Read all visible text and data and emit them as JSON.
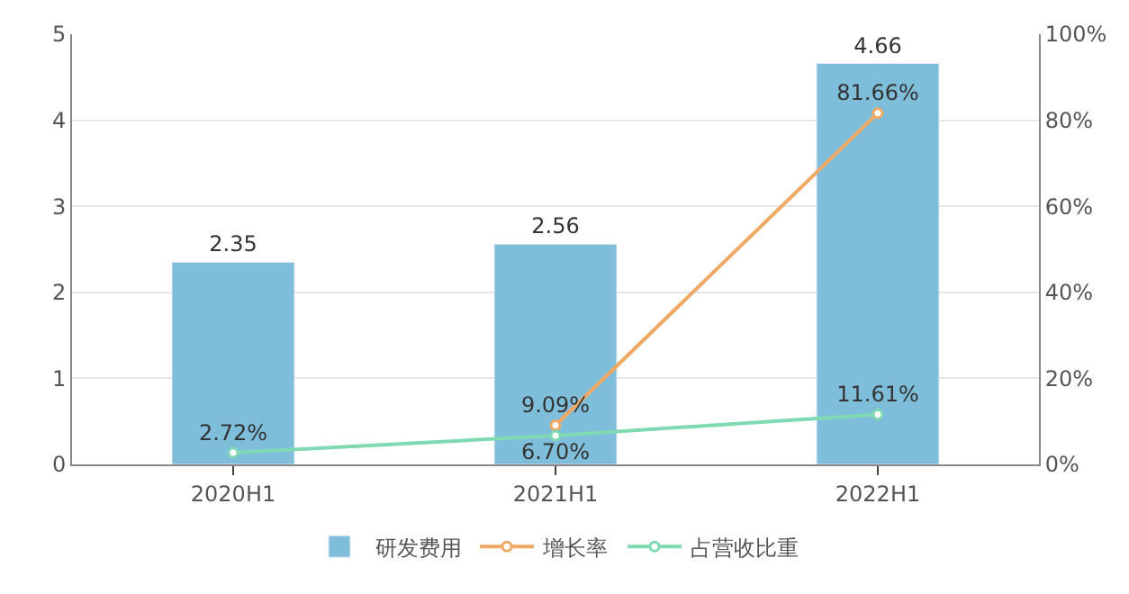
{
  "chart_data": {
    "type": "bar",
    "categories": [
      "2020H1",
      "2021H1",
      "2022H1"
    ],
    "series": [
      {
        "name": "研发费用",
        "color": "#7fbedb",
        "values": [
          2.35,
          2.56,
          4.66
        ],
        "value_labels": [
          "2.35",
          "2.56",
          "4.66"
        ]
      },
      {
        "name": "增长率",
        "type": "line",
        "axis": "y2",
        "color": "#f0a964",
        "values": [
          null,
          9.09,
          81.66
        ],
        "value_labels": [
          null,
          "9.09%",
          "81.66%"
        ]
      },
      {
        "name": "占营收比重",
        "type": "line",
        "axis": "y2",
        "color": "#7fd9b3",
        "values": [
          2.72,
          6.7,
          11.61
        ],
        "value_labels": [
          "2.72%",
          "6.70%",
          "11.61%"
        ]
      }
    ],
    "ylim": [
      0,
      5
    ],
    "yticks": [
      0,
      1,
      2,
      3,
      4,
      5
    ],
    "y2lim": [
      0,
      100
    ],
    "y2ticks": [
      {
        "value": 0,
        "label": "0%"
      },
      {
        "value": 20,
        "label": "20%"
      },
      {
        "value": 40,
        "label": "40%"
      },
      {
        "value": 60,
        "label": "60%"
      },
      {
        "value": 80,
        "label": "80%"
      },
      {
        "value": 100,
        "label": "100%"
      }
    ],
    "grid": "y",
    "legend": "bottom",
    "marker": "circle",
    "line_style": "solid"
  }
}
